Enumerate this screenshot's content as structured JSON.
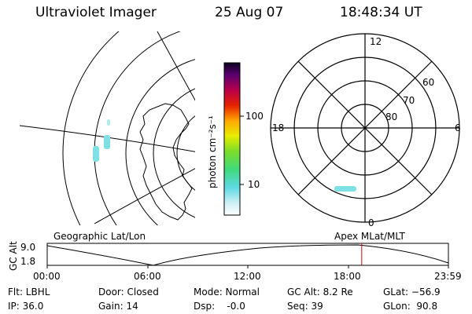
{
  "header": {
    "instrument": "Ultraviolet Imager",
    "date": "25 Aug 07",
    "time": "18:48:34 UT"
  },
  "colorbar": {
    "unit": "photon cm⁻²s⁻¹",
    "ticks": [
      "100",
      "10"
    ]
  },
  "polar_plot": {
    "mlt_labels": {
      "top": "12",
      "right": "6",
      "bottom": "0",
      "left": "18"
    },
    "mlat_labels": [
      "60",
      "70",
      "80"
    ]
  },
  "left_panel": {
    "caption": "Geographic Lat/Lon"
  },
  "right_panel": {
    "caption": "Apex MLat/MLT"
  },
  "altitude_plot": {
    "ylabel": "GC Alt",
    "y_ticks": [
      "9.0",
      "1.8"
    ],
    "x_ticks": [
      "00:00",
      "06:00",
      "12:00",
      "18:00",
      "23:59"
    ],
    "current_time_fraction": 0.784
  },
  "info_rows": [
    [
      "Flt: LBHL",
      "Door: Closed",
      "Mode: Normal",
      "GC Alt: 8.2 Re",
      "GLat: −56.9"
    ],
    [
      "IP: 36.0",
      "Gain: 14",
      "Dsp:    -0.0",
      "Seq: 39",
      "GLon:  90.8"
    ]
  ],
  "colors": {
    "marker": "#cc0000",
    "aurora": "#7fe0e6"
  }
}
